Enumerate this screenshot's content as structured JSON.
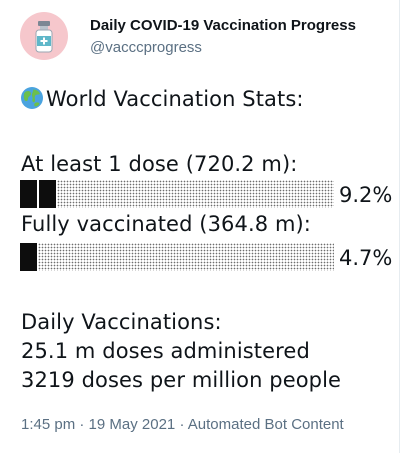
{
  "account": {
    "display_name": "Daily COVID-19 Vaccination Progress",
    "handle": "@vacccprogress",
    "avatar_icon": "vaccine-bottle-icon",
    "avatar_bg": "#f6c7cc"
  },
  "tweet": {
    "heading_icon": "globe-icon",
    "heading": "World Vaccination Stats:",
    "stats": [
      {
        "label": "At least 1 dose (720.2 m):",
        "progress": 0.092,
        "percent": "9.2%"
      },
      {
        "label": "Fully vaccinated (364.8 m):",
        "progress": 0.047,
        "percent": "4.7%"
      }
    ],
    "daily_heading": "Daily Vaccinations:",
    "daily_doses": "25.1 m doses administered",
    "daily_per_million": "3219 doses per million people"
  },
  "meta": {
    "time": "1:45 pm",
    "date": "19 May 2021",
    "source": "Automated Bot Content",
    "separator": " · "
  },
  "colors": {
    "text": "#0f1419",
    "secondary": "#5b7083",
    "bar_filled": "#0d0d0d",
    "bar_empty_dots": "#6e6e6e"
  }
}
